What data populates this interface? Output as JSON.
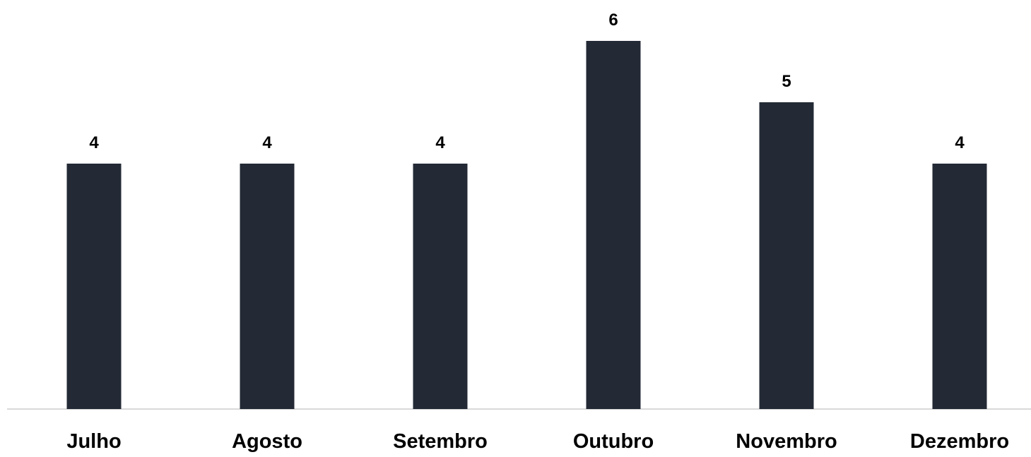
{
  "chart_data": {
    "type": "bar",
    "categories": [
      "Julho",
      "Agosto",
      "Setembro",
      "Outubro",
      "Novembro",
      "Dezembro"
    ],
    "values": [
      4,
      4,
      4,
      6,
      5,
      4
    ],
    "data_labels": [
      "4",
      "4",
      "4",
      "6",
      "5",
      "4"
    ],
    "title": "",
    "xlabel": "",
    "ylabel": "",
    "ylim": [
      0,
      6
    ],
    "grid": false,
    "legend": "none",
    "colors": {
      "bar": "#232a35",
      "axis": "#d9d9d9",
      "text": "#000000"
    }
  }
}
